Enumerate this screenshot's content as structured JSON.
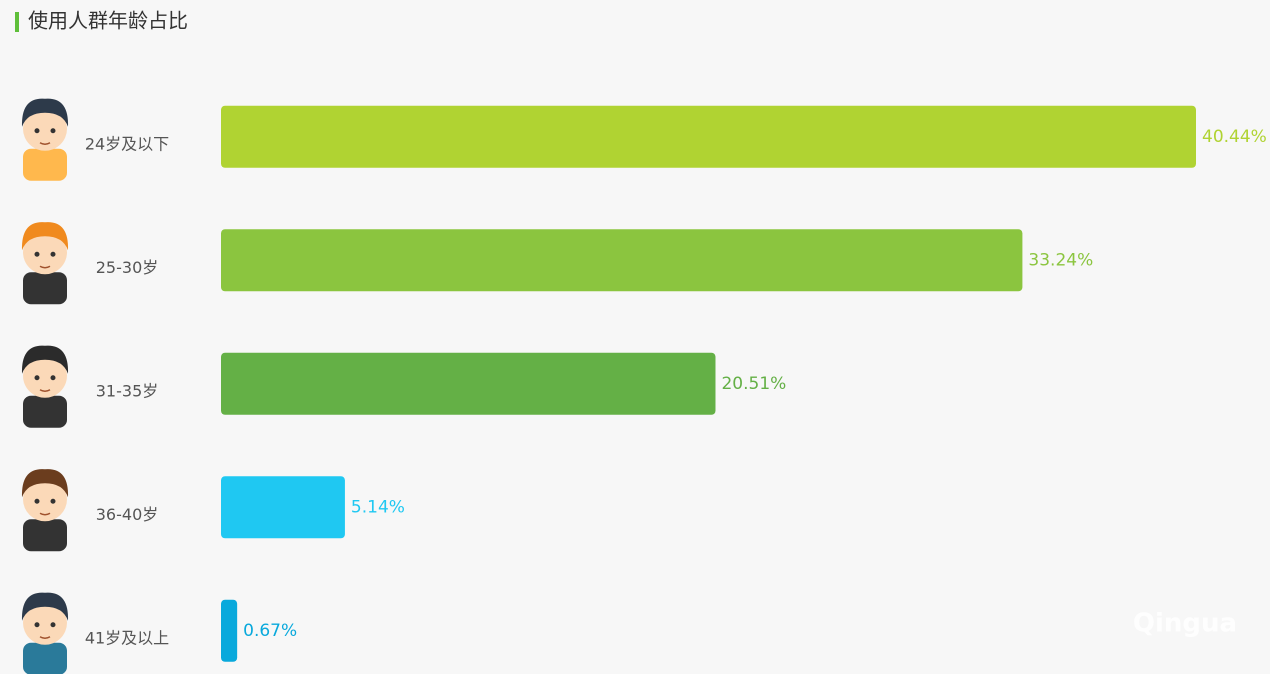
{
  "chart_data": {
    "type": "bar",
    "orientation": "horizontal",
    "title": "使用人群年龄占比",
    "categories": [
      "24岁及以下",
      "25-30岁",
      "31-35岁",
      "36-40岁",
      "41岁及以上"
    ],
    "values": [
      40.44,
      33.24,
      20.51,
      5.14,
      0.67
    ],
    "value_labels": [
      "40.44%",
      "33.24%",
      "20.51%",
      "5.14%",
      "0.67%"
    ],
    "colors": [
      "#b0d332",
      "#8bc53f",
      "#64b046",
      "#1fc8f2",
      "#09a9dc"
    ],
    "watermark": "Qingua"
  }
}
